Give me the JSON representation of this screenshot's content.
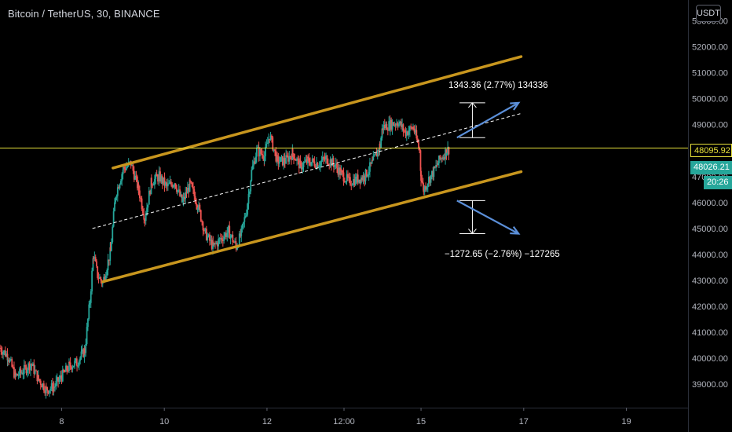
{
  "header": {
    "title": "Bitcoin / TetherUS, 30, BINANCE",
    "currency": "USDT"
  },
  "price_badges": {
    "last_price": "48095.92",
    "close_price": "48026.21",
    "countdown": "20:26"
  },
  "annotations": {
    "up_target": "1343.36 (2.77%) 134336",
    "down_target": "−1272.65 (−2.76%) −127265"
  },
  "colors": {
    "background": "#000000",
    "up_candle": "#26a69a",
    "down_candle": "#ef5350",
    "channel": "#c8961e",
    "last_price_line": "#e8e23a",
    "projection_arrow": "#5b8fd9"
  },
  "chart_data": {
    "type": "candlestick",
    "xlabel": "",
    "ylabel": "",
    "y_axis_side": "right",
    "ylim": [
      38100,
      53800
    ],
    "y_ticks": [
      39000,
      40000,
      41000,
      42000,
      43000,
      44000,
      45000,
      46000,
      47000,
      48000,
      49000,
      50000,
      51000,
      52000,
      53000
    ],
    "y_tick_labels": [
      "39000.00",
      "40000.00",
      "41000.00",
      "42000.00",
      "43000.00",
      "44000.00",
      "45000.00",
      "46000.00",
      "47000.00",
      "48000.00",
      "49000.00",
      "50000.00",
      "51000.00",
      "52000.00",
      "53000.00"
    ],
    "x_ticks": [
      8,
      10,
      12,
      13.5,
      15,
      17,
      19
    ],
    "x_tick_labels": [
      "8",
      "10",
      "12",
      "12:00",
      "15",
      "17",
      "19"
    ],
    "xlim": [
      6.8,
      20.2
    ],
    "candle_interval_days": 0.0208,
    "anchors": [
      [
        6.8,
        40400
      ],
      [
        6.95,
        40100
      ],
      [
        7.1,
        39300
      ],
      [
        7.25,
        39500
      ],
      [
        7.4,
        39800
      ],
      [
        7.55,
        39200
      ],
      [
        7.7,
        38800
      ],
      [
        7.85,
        38900
      ],
      [
        8.0,
        39300
      ],
      [
        8.15,
        39700
      ],
      [
        8.3,
        39850
      ],
      [
        8.45,
        40300
      ],
      [
        8.55,
        42200
      ],
      [
        8.62,
        44000
      ],
      [
        8.7,
        43200
      ],
      [
        8.8,
        42900
      ],
      [
        8.95,
        44100
      ],
      [
        9.05,
        46300
      ],
      [
        9.2,
        47300
      ],
      [
        9.35,
        47500
      ],
      [
        9.5,
        46500
      ],
      [
        9.62,
        45400
      ],
      [
        9.75,
        46800
      ],
      [
        9.9,
        47000
      ],
      [
        10.05,
        46600
      ],
      [
        10.2,
        46800
      ],
      [
        10.35,
        46000
      ],
      [
        10.5,
        46700
      ],
      [
        10.65,
        45900
      ],
      [
        10.8,
        44800
      ],
      [
        10.95,
        44300
      ],
      [
        11.1,
        44600
      ],
      [
        11.25,
        44900
      ],
      [
        11.4,
        44300
      ],
      [
        11.5,
        44800
      ],
      [
        11.6,
        45700
      ],
      [
        11.7,
        47200
      ],
      [
        11.8,
        48000
      ],
      [
        11.95,
        47800
      ],
      [
        12.05,
        48600
      ],
      [
        12.2,
        47600
      ],
      [
        12.35,
        47600
      ],
      [
        12.5,
        47900
      ],
      [
        12.65,
        47400
      ],
      [
        12.8,
        47600
      ],
      [
        13.0,
        47500
      ],
      [
        13.15,
        47700
      ],
      [
        13.3,
        47500
      ],
      [
        13.45,
        47100
      ],
      [
        13.6,
        46800
      ],
      [
        13.75,
        46900
      ],
      [
        13.9,
        47000
      ],
      [
        14.05,
        47500
      ],
      [
        14.2,
        48200
      ],
      [
        14.25,
        48900
      ],
      [
        14.4,
        49000
      ],
      [
        14.55,
        49100
      ],
      [
        14.7,
        48700
      ],
      [
        14.85,
        48900
      ],
      [
        14.97,
        48000
      ],
      [
        15.0,
        47000
      ],
      [
        15.05,
        46500
      ],
      [
        15.15,
        46900
      ],
      [
        15.25,
        47200
      ],
      [
        15.35,
        47600
      ],
      [
        15.5,
        48000
      ],
      [
        15.55,
        48050
      ]
    ],
    "channel_upper": [
      [
        9.0,
        47330
      ],
      [
        16.95,
        51620
      ]
    ],
    "channel_lower": [
      [
        8.8,
        42950
      ],
      [
        16.95,
        47190
      ]
    ],
    "channel_mid": [
      [
        8.6,
        45000
      ],
      [
        16.95,
        49430
      ]
    ],
    "last_price_level": 48095.92,
    "measure_up": {
      "from": 48497,
      "to": 49840,
      "x_start": 15.75,
      "x_end": 16.25
    },
    "measure_down": {
      "from": 46075,
      "to": 44802,
      "x_start": 15.75,
      "x_end": 16.25
    },
    "arrow_up": {
      "from": [
        15.7,
        48500
      ],
      "to": [
        16.9,
        49840
      ]
    },
    "arrow_down": {
      "from": [
        15.7,
        46075
      ],
      "to": [
        16.9,
        44800
      ]
    }
  }
}
